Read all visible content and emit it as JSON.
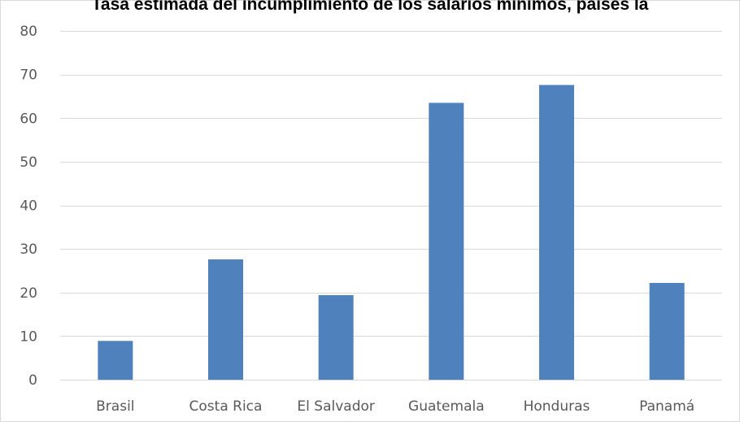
{
  "chart_data": {
    "type": "bar",
    "title": "Tasa estimada del incumplimiento de los salarios mínimos, países la",
    "xlabel": "",
    "ylabel": "",
    "categories": [
      "Brasil",
      "Costa Rica",
      "El Salvador",
      "Guatemala",
      "Honduras",
      "Panamá"
    ],
    "values": [
      8.9,
      27.6,
      19.4,
      63.5,
      67.6,
      22.2
    ],
    "ylim": [
      0,
      80
    ],
    "yticks": [
      0,
      10,
      20,
      30,
      40,
      50,
      60,
      70,
      80
    ],
    "grid": true,
    "legend": "none",
    "colors": {
      "bar": "#4f81bd",
      "grid": "#d9d9d9",
      "axis": "#d9d9d9",
      "text": "#595959"
    }
  }
}
